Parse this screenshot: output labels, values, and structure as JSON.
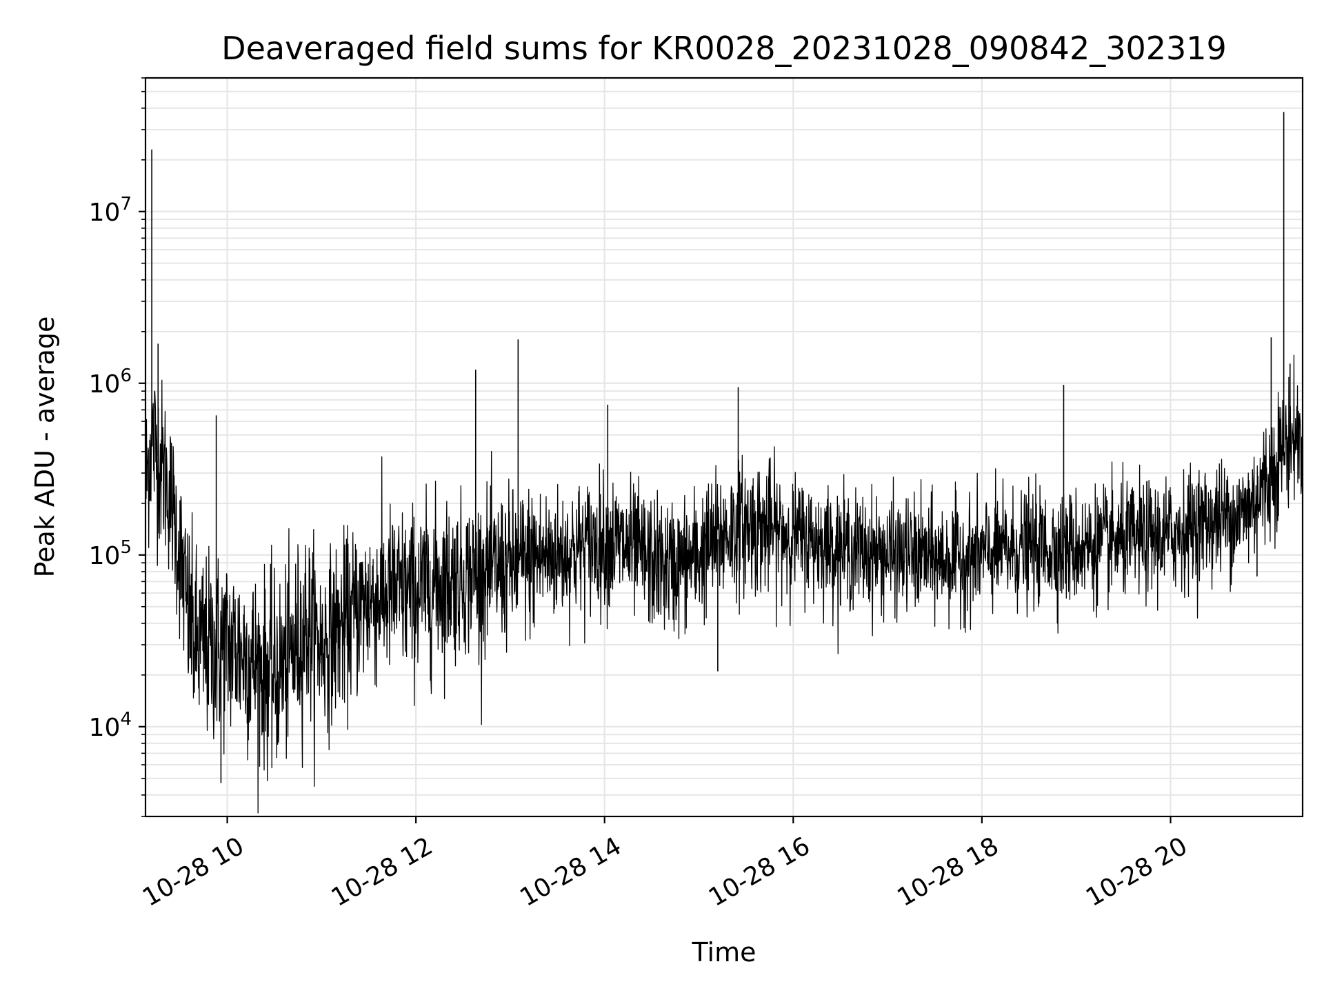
{
  "chart_data": {
    "type": "line",
    "title": "Deaveraged field sums for KR0028_20231028_090842_302319",
    "xlabel": "Time",
    "ylabel": "Peak ADU - average",
    "x_range": [
      "10-28 09:08",
      "10-28 21:24"
    ],
    "y_scale": "log",
    "ylim": [
      3000,
      60000000
    ],
    "grid": true,
    "line_color": "#000000",
    "grid_color": "#e6e6e6",
    "x_ticks": [
      {
        "value": "10-28 10:00",
        "label": "10-28 10"
      },
      {
        "value": "10-28 12:00",
        "label": "10-28 12"
      },
      {
        "value": "10-28 14:00",
        "label": "10-28 14"
      },
      {
        "value": "10-28 16:00",
        "label": "10-28 16"
      },
      {
        "value": "10-28 18:00",
        "label": "10-28 18"
      },
      {
        "value": "10-28 20:00",
        "label": "10-28 20"
      }
    ],
    "y_ticks": [
      {
        "value": 10000,
        "base": "10",
        "exp": "4"
      },
      {
        "value": 100000,
        "base": "10",
        "exp": "5"
      },
      {
        "value": 1000000,
        "base": "10",
        "exp": "6"
      },
      {
        "value": 10000000,
        "base": "10",
        "exp": "7"
      }
    ],
    "series": [
      {
        "x": [
          "10-28 09:08",
          "10-28 09:12",
          "10-28 09:15",
          "10-28 09:20",
          "10-28 09:25",
          "10-28 09:30",
          "10-28 09:35",
          "10-28 09:40",
          "10-28 09:50",
          "10-28 10:00",
          "10-28 10:10",
          "10-28 10:20",
          "10-28 10:30",
          "10-28 10:40",
          "10-28 10:50",
          "10-28 11:00",
          "10-28 11:15",
          "10-28 11:30",
          "10-28 11:45",
          "10-28 12:00",
          "10-28 12:15",
          "10-28 12:30",
          "10-28 12:45",
          "10-28 13:00",
          "10-28 13:15",
          "10-28 13:30",
          "10-28 13:45",
          "10-28 14:00",
          "10-28 14:15",
          "10-28 14:30",
          "10-28 14:45",
          "10-28 15:00",
          "10-28 15:15",
          "10-28 15:30",
          "10-28 15:45",
          "10-28 16:00",
          "10-28 16:15",
          "10-28 16:30",
          "10-28 16:45",
          "10-28 17:00",
          "10-28 17:15",
          "10-28 17:30",
          "10-28 17:45",
          "10-28 18:00",
          "10-28 18:15",
          "10-28 18:30",
          "10-28 18:45",
          "10-28 19:00",
          "10-28 19:15",
          "10-28 19:30",
          "10-28 19:45",
          "10-28 20:00",
          "10-28 20:15",
          "10-28 20:30",
          "10-28 20:45",
          "10-28 21:00",
          "10-28 21:10",
          "10-28 21:20",
          "10-28 21:24"
        ],
        "y": [
          250000,
          500000,
          400000,
          300000,
          200000,
          100000,
          45000,
          30000,
          28000,
          30000,
          27000,
          22000,
          20000,
          25000,
          40000,
          30000,
          40000,
          55000,
          60000,
          60000,
          70000,
          75000,
          80000,
          85000,
          95000,
          100000,
          110000,
          120000,
          110000,
          90000,
          85000,
          100000,
          130000,
          150000,
          140000,
          130000,
          120000,
          110000,
          105000,
          100000,
          100000,
          95000,
          95000,
          100000,
          105000,
          110000,
          110000,
          110000,
          115000,
          120000,
          125000,
          130000,
          150000,
          160000,
          170000,
          250000,
          400000,
          500000,
          450000
        ],
        "noise": [
          0.45,
          0.45,
          0.45,
          0.45,
          0.4,
          0.45,
          0.5,
          0.5,
          0.5,
          0.5,
          0.5,
          0.5,
          0.5,
          0.5,
          0.5,
          0.45,
          0.45,
          0.45,
          0.45,
          0.45,
          0.45,
          0.4,
          0.4,
          0.4,
          0.4,
          0.35,
          0.35,
          0.35,
          0.35,
          0.35,
          0.35,
          0.35,
          0.35,
          0.35,
          0.35,
          0.3,
          0.3,
          0.3,
          0.3,
          0.3,
          0.3,
          0.3,
          0.3,
          0.3,
          0.3,
          0.3,
          0.3,
          0.3,
          0.3,
          0.3,
          0.3,
          0.3,
          0.3,
          0.3,
          0.3,
          0.35,
          0.35,
          0.3,
          0.3
        ]
      }
    ],
    "spikes": [
      {
        "x": "10-28 09:12",
        "y": 23000000
      },
      {
        "x": "10-28 09:16",
        "y": 1700000
      },
      {
        "x": "10-28 09:53",
        "y": 650000
      },
      {
        "x": "10-28 09:56",
        "y": 4700
      },
      {
        "x": "10-28 12:38",
        "y": 1200000
      },
      {
        "x": "10-28 13:05",
        "y": 1800000
      },
      {
        "x": "10-28 14:02",
        "y": 750000
      },
      {
        "x": "10-28 15:12",
        "y": 21000
      },
      {
        "x": "10-28 15:25",
        "y": 950000
      },
      {
        "x": "10-28 18:52",
        "y": 980000
      },
      {
        "x": "10-28 20:55",
        "y": 75000
      },
      {
        "x": "10-28 21:04",
        "y": 1850000
      },
      {
        "x": "10-28 21:12",
        "y": 38000000
      },
      {
        "x": "10-28 21:16",
        "y": 1300000
      }
    ]
  }
}
